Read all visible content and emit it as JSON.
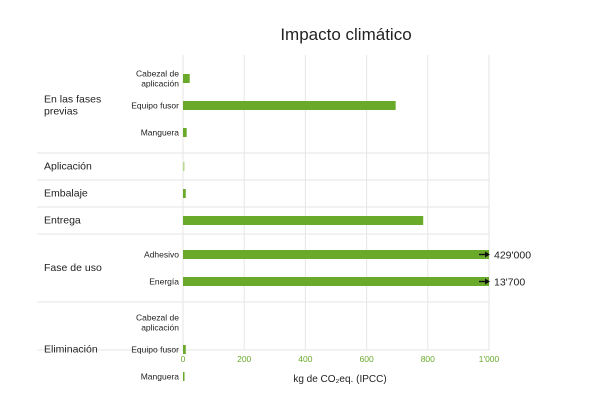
{
  "chart_data": {
    "type": "bar",
    "orientation": "horizontal",
    "title": "Impacto climático",
    "xlabel": "kg de CO₂eq. (IPCC)",
    "xlim": [
      0,
      1000
    ],
    "xticks": [
      "0",
      "200",
      "400",
      "600",
      "800",
      "1'000"
    ],
    "grid": true,
    "colors": {
      "bar": "#6aaa2a",
      "bar_light": "#b6d88e",
      "tick": "#6aaa2a",
      "arrow": "#111111"
    },
    "groups": [
      {
        "label": "En las fases previas",
        "items": [
          {
            "label": "Cabezal de aplicación",
            "value": 22
          },
          {
            "label": "Equipo fusor",
            "value": 695
          },
          {
            "label": "Manguera",
            "value": 12
          }
        ]
      },
      {
        "label": "Aplicación",
        "items": [
          {
            "label": "",
            "value": 4,
            "light": true
          }
        ]
      },
      {
        "label": "Embalaje",
        "items": [
          {
            "label": "",
            "value": 9
          }
        ]
      },
      {
        "label": "Entrega",
        "items": [
          {
            "label": "",
            "value": 785
          }
        ]
      },
      {
        "label": "Fase de uso",
        "items": [
          {
            "label": "Adhesivo",
            "value": 429000,
            "overflow": true,
            "annotation": "429'000"
          },
          {
            "label": "Energía",
            "value": 13700,
            "overflow": true,
            "annotation": "13'700"
          }
        ]
      },
      {
        "label": "Eliminación",
        "items": [
          {
            "label": "Cabezal de aplicación",
            "value": 0
          },
          {
            "label": "Equipo fusor",
            "value": 9
          },
          {
            "label": "Manguera",
            "value": 3
          }
        ]
      }
    ]
  }
}
